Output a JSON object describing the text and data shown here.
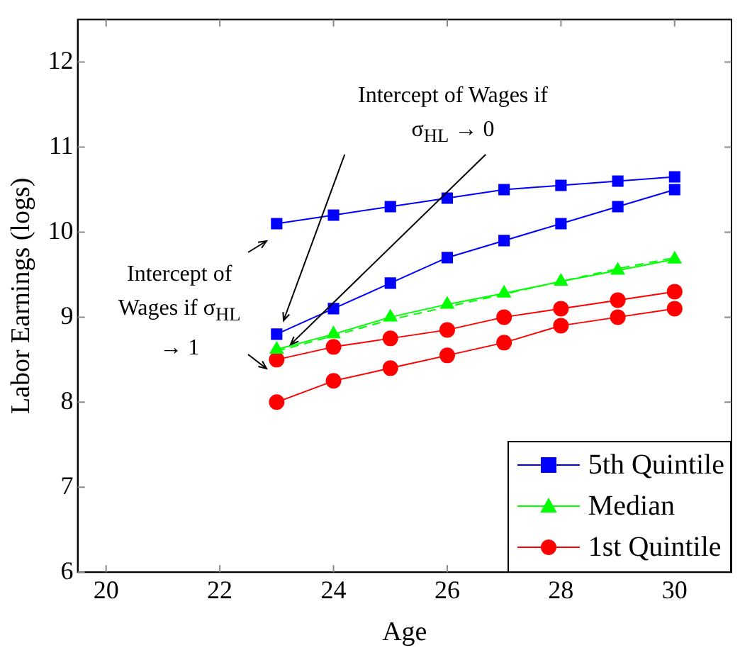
{
  "chart_data": {
    "type": "line",
    "xlabel": "Age",
    "ylabel": "Labor Earnings (logs)",
    "x": [
      23,
      24,
      25,
      26,
      27,
      28,
      29,
      30
    ],
    "series": [
      {
        "name": "5th Quintile",
        "color": "#0000ff",
        "marker": "square",
        "values": [
          10.1,
          10.2,
          10.3,
          10.4,
          10.5,
          10.55,
          10.6,
          10.65
        ]
      },
      {
        "color": "#0000ff",
        "marker": "square",
        "values": [
          8.8,
          9.1,
          9.4,
          9.7,
          9.9,
          10.1,
          10.3,
          10.5
        ]
      },
      {
        "name": "Median",
        "color": "#00ff00",
        "marker": "triangle",
        "values": [
          8.62,
          8.8,
          9.0,
          9.15,
          9.28,
          9.42,
          9.55,
          9.68
        ]
      },
      {
        "color": "#00ff00",
        "marker": "none",
        "line_style": "dashed",
        "values": [
          8.6,
          8.78,
          8.97,
          9.12,
          9.27,
          9.42,
          9.57,
          9.7
        ]
      },
      {
        "name": "1st Quintile",
        "color": "#ff0000",
        "marker": "circle",
        "values": [
          8.5,
          8.65,
          8.75,
          8.85,
          9.0,
          9.1,
          9.2,
          9.3
        ]
      },
      {
        "color": "#ff0000",
        "marker": "circle",
        "values": [
          8.0,
          8.25,
          8.4,
          8.55,
          8.7,
          8.9,
          9.0,
          9.1
        ]
      }
    ],
    "xlim": [
      19.5,
      31
    ],
    "xticks": [
      20,
      22,
      24,
      26,
      28,
      30
    ],
    "ylim": [
      6,
      12.5
    ],
    "yticks": [
      6,
      7,
      8,
      9,
      10,
      11,
      12
    ],
    "grid": false,
    "legend": "bottom right",
    "annotations": [
      "Intercept of Wages if σ$_{HL}$ → 0",
      "Intercept of Wages if σ$_{HL}$ → 1"
    ]
  }
}
